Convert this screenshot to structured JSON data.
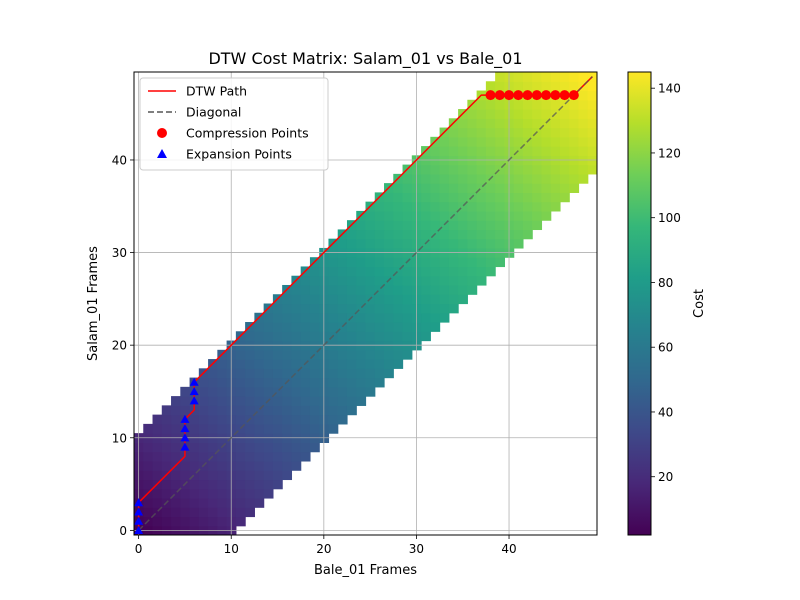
{
  "chart_data": {
    "type": "heatmap",
    "title": "DTW Cost Matrix: Salam_01 vs Bale_01",
    "xlabel": "Bale_01 Frames",
    "ylabel": "Salam_01 Frames",
    "xlim": [
      -0.5,
      49.5
    ],
    "ylim": [
      -0.5,
      49.5
    ],
    "xticks": [
      0,
      10,
      20,
      30,
      40
    ],
    "yticks": [
      0,
      10,
      20,
      30,
      40
    ],
    "grid": true,
    "colormap": "viridis",
    "colorbar": {
      "label": "Cost",
      "range": [
        2,
        145
      ],
      "ticks": [
        20,
        40,
        60,
        80,
        100,
        120,
        140
      ]
    },
    "band": {
      "description": "cells outside the band are empty",
      "lower_offset": -10,
      "upper_offset": 10,
      "cost_model": "cost ≈ 2 + 1.55*i + 1.4*j (Salam frame i, Bale frame j)"
    },
    "legend": {
      "position": "upper-left",
      "entries": [
        {
          "label": "DTW Path",
          "color": "#ff0000",
          "style": "line"
        },
        {
          "label": "Diagonal",
          "color": "#555555",
          "style": "dashed"
        },
        {
          "label": "Compression Points",
          "color": "#ff0000",
          "style": "circle"
        },
        {
          "label": "Expansion Points",
          "color": "#0000ff",
          "style": "triangle"
        }
      ]
    },
    "series": [
      {
        "name": "DTW Path",
        "type": "line",
        "color": "#ff0000",
        "points": [
          [
            0,
            0
          ],
          [
            0,
            3
          ],
          [
            5,
            8
          ],
          [
            5,
            12
          ],
          [
            6,
            13
          ],
          [
            6,
            16
          ],
          [
            8,
            18
          ],
          [
            10,
            20
          ],
          [
            20,
            30
          ],
          [
            30,
            40
          ],
          [
            37,
            47
          ],
          [
            47,
            47
          ],
          [
            49,
            49
          ]
        ]
      },
      {
        "name": "Diagonal",
        "type": "line",
        "color": "#555555",
        "points": [
          [
            0,
            0
          ],
          [
            49,
            49
          ]
        ]
      },
      {
        "name": "Compression Points",
        "type": "scatter",
        "marker": "circle",
        "color": "#ff0000",
        "points": [
          [
            38,
            47
          ],
          [
            39,
            47
          ],
          [
            40,
            47
          ],
          [
            41,
            47
          ],
          [
            42,
            47
          ],
          [
            43,
            47
          ],
          [
            44,
            47
          ],
          [
            45,
            47
          ],
          [
            46,
            47
          ],
          [
            47,
            47
          ]
        ]
      },
      {
        "name": "Expansion Points",
        "type": "scatter",
        "marker": "triangle",
        "color": "#0000ff",
        "points": [
          [
            0,
            0
          ],
          [
            0,
            1
          ],
          [
            0,
            2
          ],
          [
            0,
            3
          ],
          [
            5,
            9
          ],
          [
            5,
            10
          ],
          [
            5,
            11
          ],
          [
            5,
            12
          ],
          [
            6,
            14
          ],
          [
            6,
            15
          ],
          [
            6,
            16
          ]
        ]
      }
    ]
  }
}
